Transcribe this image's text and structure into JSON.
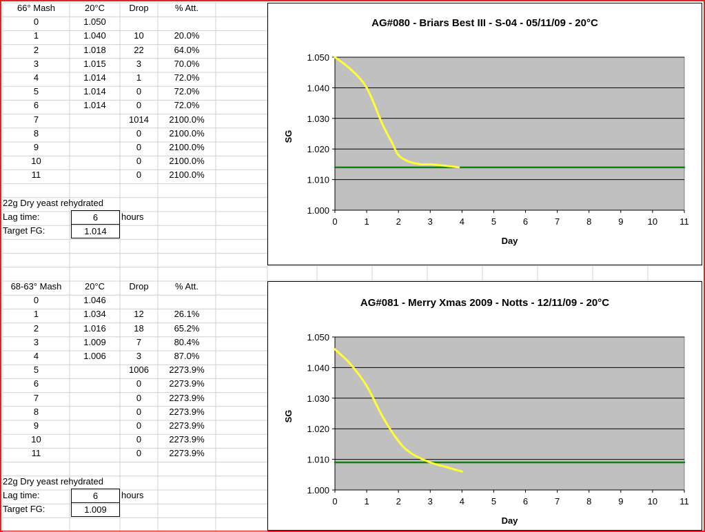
{
  "tables": [
    {
      "headers": [
        "66° Mash",
        "20°C",
        "Drop",
        "% Att."
      ],
      "rows": [
        [
          "0",
          "1.050",
          "",
          ""
        ],
        [
          "1",
          "1.040",
          "10",
          "20.0%"
        ],
        [
          "2",
          "1.018",
          "22",
          "64.0%"
        ],
        [
          "3",
          "1.015",
          "3",
          "70.0%"
        ],
        [
          "4",
          "1.014",
          "1",
          "72.0%"
        ],
        [
          "5",
          "1.014",
          "0",
          "72.0%"
        ],
        [
          "6",
          "1.014",
          "0",
          "72.0%"
        ],
        [
          "7",
          "",
          "1014",
          "2100.0%"
        ],
        [
          "8",
          "",
          "0",
          "2100.0%"
        ],
        [
          "9",
          "",
          "0",
          "2100.0%"
        ],
        [
          "10",
          "",
          "0",
          "2100.0%"
        ],
        [
          "11",
          "",
          "0",
          "2100.0%"
        ]
      ],
      "yeast_note": "22g Dry yeast rehydrated",
      "lag_label": "Lag time:",
      "lag_value": "6",
      "lag_unit": "hours",
      "fg_label": "Target FG:",
      "fg_value": "1.014"
    },
    {
      "headers": [
        "68-63° Mash",
        "20°C",
        "Drop",
        "% Att."
      ],
      "rows": [
        [
          "0",
          "1.046",
          "",
          ""
        ],
        [
          "1",
          "1.034",
          "12",
          "26.1%"
        ],
        [
          "2",
          "1.016",
          "18",
          "65.2%"
        ],
        [
          "3",
          "1.009",
          "7",
          "80.4%"
        ],
        [
          "4",
          "1.006",
          "3",
          "87.0%"
        ],
        [
          "5",
          "",
          "1006",
          "2273.9%"
        ],
        [
          "6",
          "",
          "0",
          "2273.9%"
        ],
        [
          "7",
          "",
          "0",
          "2273.9%"
        ],
        [
          "8",
          "",
          "0",
          "2273.9%"
        ],
        [
          "9",
          "",
          "0",
          "2273.9%"
        ],
        [
          "10",
          "",
          "0",
          "2273.9%"
        ],
        [
          "11",
          "",
          "0",
          "2273.9%"
        ]
      ],
      "yeast_note": "22g Dry yeast rehydrated",
      "lag_label": "Lag time:",
      "lag_value": "6",
      "lag_unit": "hours",
      "fg_label": "Target FG:",
      "fg_value": "1.009"
    }
  ],
  "colors": {
    "frame": "#e52222",
    "plot_bg": "#c0c0c0",
    "curve": "#ffff33",
    "target": "#108010",
    "gridline": "#000000"
  },
  "chart_data": [
    {
      "type": "line",
      "title": "AG#080 - Briars Best III - S-04 - 05/11/09 - 20°C",
      "xlabel": "Day",
      "ylabel": "SG",
      "xlim": [
        0,
        11
      ],
      "ylim": [
        1.0,
        1.05
      ],
      "xticks": [
        "0",
        "1",
        "2",
        "3",
        "4",
        "5",
        "6",
        "7",
        "8",
        "9",
        "10",
        "11"
      ],
      "yticks": [
        "1.000",
        "1.010",
        "1.020",
        "1.030",
        "1.040",
        "1.050"
      ],
      "grid": "horizontal",
      "series": [
        {
          "x": [
            0,
            0.5,
            1.0,
            1.5,
            1.8,
            2.0,
            2.3,
            2.7,
            3.0,
            3.5,
            3.9
          ],
          "y": [
            1.05,
            1.046,
            1.04,
            1.028,
            1.022,
            1.018,
            1.016,
            1.015,
            1.015,
            1.0145,
            1.014
          ]
        },
        {
          "x": [
            0,
            11
          ],
          "y": [
            1.014,
            1.014
          ]
        }
      ]
    },
    {
      "type": "line",
      "title": "AG#081 - Merry Xmas 2009 - Notts - 12/11/09 - 20°C",
      "xlabel": "Day",
      "ylabel": "SG",
      "xlim": [
        0,
        11
      ],
      "ylim": [
        1.0,
        1.05
      ],
      "xticks": [
        "0",
        "1",
        "2",
        "3",
        "4",
        "5",
        "6",
        "7",
        "8",
        "9",
        "10",
        "11"
      ],
      "yticks": [
        "1.000",
        "1.010",
        "1.020",
        "1.030",
        "1.040",
        "1.050"
      ],
      "grid": "horizontal",
      "series": [
        {
          "x": [
            0,
            0.5,
            1.0,
            1.5,
            2.0,
            2.4,
            3.0,
            3.5,
            4.0
          ],
          "y": [
            1.046,
            1.041,
            1.034,
            1.024,
            1.016,
            1.012,
            1.009,
            1.0075,
            1.006
          ]
        },
        {
          "x": [
            0,
            11
          ],
          "y": [
            1.009,
            1.009
          ]
        }
      ]
    }
  ]
}
